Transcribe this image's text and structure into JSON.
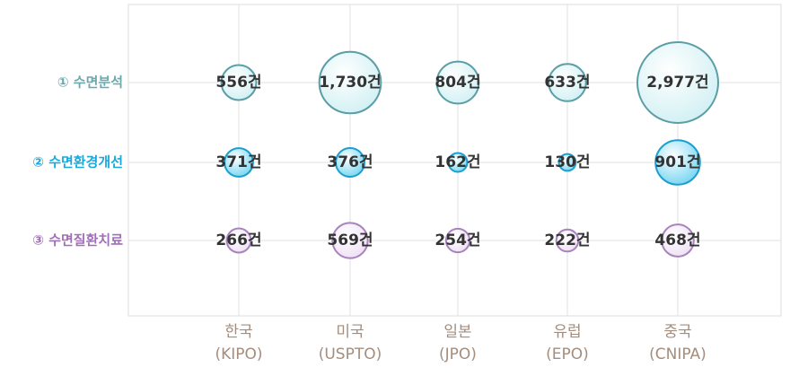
{
  "chart_data": {
    "type": "bubble",
    "categories": [
      [
        "한국",
        "(KIPO)"
      ],
      [
        "미국",
        "(USPTO)"
      ],
      [
        "일본",
        "(JPO)"
      ],
      [
        "유럽",
        "(EPO)"
      ],
      [
        "중국",
        "(CNIPA)"
      ]
    ],
    "series": [
      {
        "name": "① 수면분석",
        "color": "#6aa9ae",
        "fill": "#d4f1f4",
        "stroke": "#5a9ea6",
        "values": [
          556,
          1730,
          804,
          633,
          2977
        ],
        "value_labels": [
          "556건",
          "1,730건",
          "804건",
          "633건",
          "2,977건"
        ]
      },
      {
        "name": "② 수면환경개선",
        "color": "#1aa9dc",
        "fill": "#7fd8f2",
        "stroke": "#1a9fd0",
        "values": [
          371,
          376,
          162,
          130,
          901
        ],
        "value_labels": [
          "371건",
          "376건",
          "162건",
          "130건",
          "901건"
        ]
      },
      {
        "name": "③ 수면질환치료",
        "color": "#a06fb8",
        "fill": "#efe2f5",
        "stroke": "#a883bd",
        "values": [
          266,
          569,
          254,
          222,
          468
        ],
        "value_labels": [
          "266건",
          "569건",
          "254건",
          "222건",
          "468건"
        ]
      }
    ],
    "grid": true
  }
}
